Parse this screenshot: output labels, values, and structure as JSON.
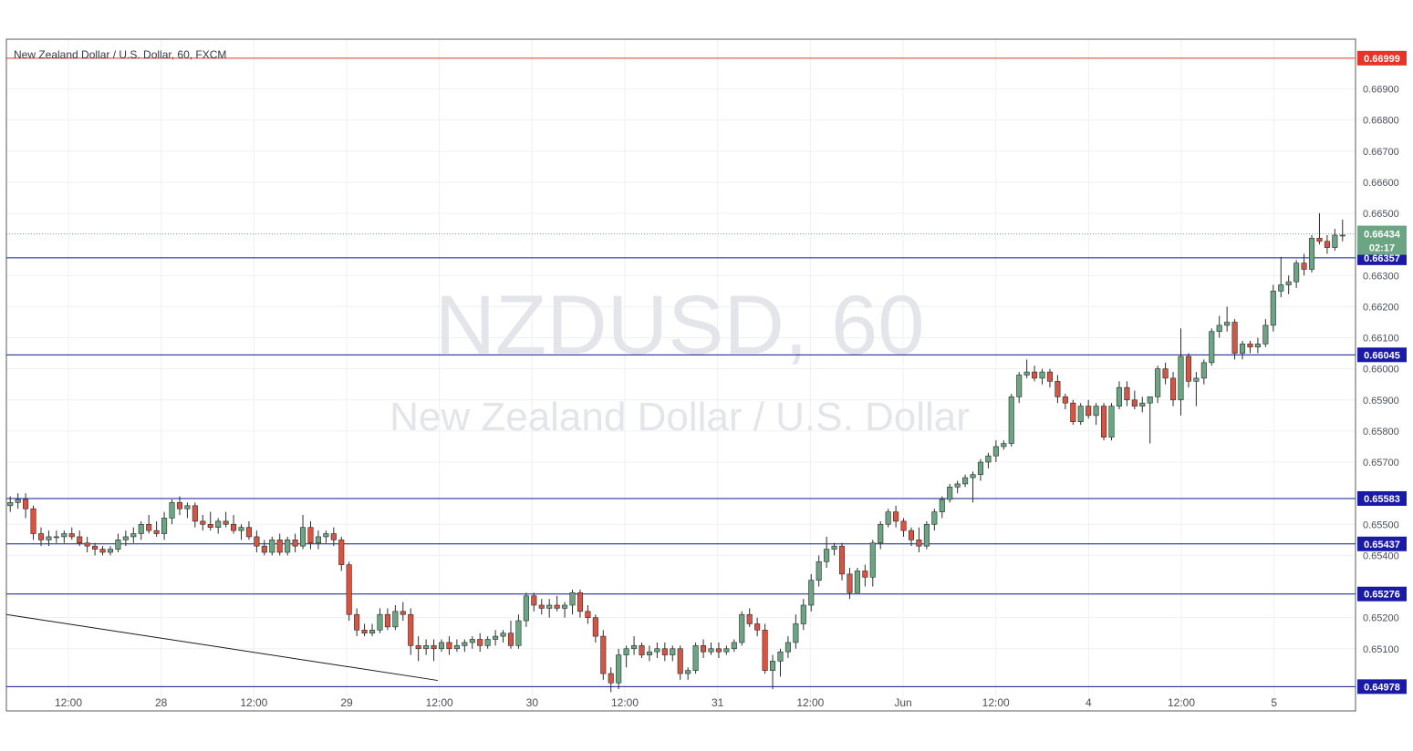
{
  "chart_title": "New Zealand Dollar / U.S. Dollar, 60, FXCM",
  "watermark": {
    "symbol": "NZDUSD, 60",
    "description": "New Zealand Dollar / U.S. Dollar"
  },
  "colors": {
    "bullish": "#6ba583",
    "bearish": "#d75442",
    "grid": "#eef0f3",
    "level_line": "#0c1a8a",
    "level_tag": "#1a1aa6",
    "top_line": "#e8332a",
    "current_price": "#6ba583"
  },
  "chart_data": {
    "type": "candlestick",
    "title": "New Zealand Dollar / U.S. Dollar, 60, FXCM",
    "interval": "60",
    "ylim": [
      0.649,
      0.6706
    ],
    "y_ticks": [
      "0.66900",
      "0.66800",
      "0.66700",
      "0.66600",
      "0.66500",
      "0.66300",
      "0.66200",
      "0.66100",
      "0.66000",
      "0.65900",
      "0.65800",
      "0.65700",
      "0.65500",
      "0.65400",
      "0.65200",
      "0.65100"
    ],
    "x_ticks": [
      "12:00",
      "28",
      "12:00",
      "29",
      "12:00",
      "30",
      "12:00",
      "31",
      "12:00",
      "Jun",
      "12:00",
      "4",
      "12:00",
      "5"
    ],
    "horizontal_levels": [
      {
        "label": "0.66999",
        "value": 0.66999,
        "style": "red"
      },
      {
        "label": "0.66357",
        "value": 0.66357,
        "style": "blue"
      },
      {
        "label": "0.66045",
        "value": 0.66045,
        "style": "blue"
      },
      {
        "label": "0.65583",
        "value": 0.65583,
        "style": "blue"
      },
      {
        "label": "0.65437",
        "value": 0.65437,
        "style": "blue"
      },
      {
        "label": "0.65276",
        "value": 0.65276,
        "style": "blue"
      },
      {
        "label": "0.64978",
        "value": 0.64978,
        "style": "blue"
      }
    ],
    "current_price": {
      "label": "0.66434",
      "value": 0.66434,
      "countdown": "02:17"
    },
    "trend_line": {
      "start": 0.6521,
      "end": 0.64998
    },
    "candles": [
      [
        0.6556,
        0.6559,
        0.6554,
        0.6557
      ],
      [
        0.6557,
        0.656,
        0.6555,
        0.6558
      ],
      [
        0.6558,
        0.656,
        0.6552,
        0.6555
      ],
      [
        0.6555,
        0.6556,
        0.6545,
        0.6547
      ],
      [
        0.6547,
        0.6549,
        0.6543,
        0.6545
      ],
      [
        0.6545,
        0.6548,
        0.6543,
        0.6546
      ],
      [
        0.6546,
        0.6548,
        0.6544,
        0.6546
      ],
      [
        0.6546,
        0.6548,
        0.6544,
        0.6547
      ],
      [
        0.6547,
        0.6549,
        0.6545,
        0.6546
      ],
      [
        0.6546,
        0.6548,
        0.6543,
        0.6544
      ],
      [
        0.6544,
        0.6546,
        0.6541,
        0.6543
      ],
      [
        0.6543,
        0.6544,
        0.654,
        0.6542
      ],
      [
        0.6542,
        0.6543,
        0.654,
        0.6541
      ],
      [
        0.6541,
        0.6543,
        0.654,
        0.6542
      ],
      [
        0.6542,
        0.6547,
        0.6541,
        0.6545
      ],
      [
        0.6545,
        0.6548,
        0.6543,
        0.6546
      ],
      [
        0.6546,
        0.6549,
        0.6544,
        0.6547
      ],
      [
        0.6547,
        0.6551,
        0.6545,
        0.655
      ],
      [
        0.655,
        0.6553,
        0.6547,
        0.6548
      ],
      [
        0.6548,
        0.6551,
        0.6546,
        0.6547
      ],
      [
        0.6547,
        0.6554,
        0.6545,
        0.6552
      ],
      [
        0.6552,
        0.6558,
        0.655,
        0.6557
      ],
      [
        0.6557,
        0.6559,
        0.6553,
        0.6555
      ],
      [
        0.6555,
        0.6557,
        0.6552,
        0.6556
      ],
      [
        0.6556,
        0.6557,
        0.6549,
        0.6551
      ],
      [
        0.6551,
        0.6553,
        0.6548,
        0.655
      ],
      [
        0.655,
        0.6554,
        0.6548,
        0.6549
      ],
      [
        0.6549,
        0.6552,
        0.6547,
        0.6551
      ],
      [
        0.6551,
        0.6554,
        0.6549,
        0.655
      ],
      [
        0.655,
        0.6553,
        0.6547,
        0.6548
      ],
      [
        0.6548,
        0.655,
        0.6545,
        0.6549
      ],
      [
        0.6549,
        0.6551,
        0.6545,
        0.6546
      ],
      [
        0.6546,
        0.6548,
        0.6541,
        0.6543
      ],
      [
        0.6543,
        0.6545,
        0.654,
        0.6541
      ],
      [
        0.6541,
        0.6546,
        0.654,
        0.6545
      ],
      [
        0.6545,
        0.6547,
        0.654,
        0.6541
      ],
      [
        0.6541,
        0.6546,
        0.654,
        0.6545
      ],
      [
        0.6545,
        0.6547,
        0.6541,
        0.6543
      ],
      [
        0.6543,
        0.6553,
        0.6542,
        0.6549
      ],
      [
        0.6549,
        0.6551,
        0.6542,
        0.6544
      ],
      [
        0.6544,
        0.6548,
        0.6542,
        0.6546
      ],
      [
        0.6546,
        0.6548,
        0.6544,
        0.6547
      ],
      [
        0.6547,
        0.6549,
        0.6543,
        0.6545
      ],
      [
        0.6545,
        0.6546,
        0.6535,
        0.6537
      ],
      [
        0.6537,
        0.6538,
        0.6519,
        0.6521
      ],
      [
        0.6521,
        0.6523,
        0.6514,
        0.6516
      ],
      [
        0.6516,
        0.6518,
        0.6514,
        0.6515
      ],
      [
        0.6515,
        0.6518,
        0.6514,
        0.6516
      ],
      [
        0.6516,
        0.6523,
        0.6515,
        0.6521
      ],
      [
        0.6521,
        0.6523,
        0.6516,
        0.6517
      ],
      [
        0.6517,
        0.6524,
        0.6516,
        0.6522
      ],
      [
        0.6522,
        0.6525,
        0.6519,
        0.6521
      ],
      [
        0.6521,
        0.6523,
        0.6508,
        0.6511
      ],
      [
        0.6511,
        0.6514,
        0.6506,
        0.651
      ],
      [
        0.651,
        0.6513,
        0.6508,
        0.6511
      ],
      [
        0.6511,
        0.6513,
        0.6506,
        0.651
      ],
      [
        0.651,
        0.6513,
        0.6509,
        0.6512
      ],
      [
        0.6512,
        0.6514,
        0.6508,
        0.651
      ],
      [
        0.651,
        0.6513,
        0.6509,
        0.6511
      ],
      [
        0.6511,
        0.6513,
        0.6509,
        0.6512
      ],
      [
        0.6512,
        0.6514,
        0.651,
        0.6513
      ],
      [
        0.6513,
        0.6515,
        0.6509,
        0.6511
      ],
      [
        0.6511,
        0.6514,
        0.651,
        0.6513
      ],
      [
        0.6513,
        0.6516,
        0.6511,
        0.6514
      ],
      [
        0.6514,
        0.6516,
        0.6512,
        0.6515
      ],
      [
        0.6515,
        0.6519,
        0.651,
        0.6511
      ],
      [
        0.6511,
        0.6521,
        0.651,
        0.6519
      ],
      [
        0.6519,
        0.6528,
        0.6517,
        0.6527
      ],
      [
        0.6527,
        0.6528,
        0.6522,
        0.6524
      ],
      [
        0.6524,
        0.6526,
        0.6521,
        0.6523
      ],
      [
        0.6523,
        0.6526,
        0.652,
        0.6524
      ],
      [
        0.6524,
        0.6527,
        0.6522,
        0.6523
      ],
      [
        0.6523,
        0.6525,
        0.652,
        0.6524
      ],
      [
        0.6524,
        0.6529,
        0.6521,
        0.6528
      ],
      [
        0.6528,
        0.6529,
        0.652,
        0.6522
      ],
      [
        0.6522,
        0.6524,
        0.6518,
        0.652
      ],
      [
        0.652,
        0.6521,
        0.6512,
        0.6514
      ],
      [
        0.6514,
        0.6516,
        0.65,
        0.6502
      ],
      [
        0.6502,
        0.6504,
        0.6496,
        0.6499
      ],
      [
        0.6499,
        0.651,
        0.6497,
        0.6508
      ],
      [
        0.6508,
        0.6511,
        0.6504,
        0.651
      ],
      [
        0.651,
        0.6514,
        0.6508,
        0.6511
      ],
      [
        0.6511,
        0.6512,
        0.6507,
        0.6508
      ],
      [
        0.6508,
        0.6511,
        0.6506,
        0.6509
      ],
      [
        0.6509,
        0.6512,
        0.6507,
        0.651
      ],
      [
        0.651,
        0.6512,
        0.6506,
        0.6508
      ],
      [
        0.6508,
        0.6511,
        0.6506,
        0.651
      ],
      [
        0.651,
        0.6511,
        0.65,
        0.6502
      ],
      [
        0.6502,
        0.6504,
        0.65,
        0.6503
      ],
      [
        0.6503,
        0.6512,
        0.6502,
        0.6511
      ],
      [
        0.6511,
        0.6513,
        0.6507,
        0.6509
      ],
      [
        0.6509,
        0.6512,
        0.6508,
        0.651
      ],
      [
        0.651,
        0.6512,
        0.6507,
        0.6509
      ],
      [
        0.6509,
        0.6511,
        0.6508,
        0.651
      ],
      [
        0.651,
        0.6513,
        0.6509,
        0.6512
      ],
      [
        0.6512,
        0.6522,
        0.6511,
        0.6521
      ],
      [
        0.6521,
        0.6523,
        0.6517,
        0.6518
      ],
      [
        0.6518,
        0.652,
        0.6514,
        0.6516
      ],
      [
        0.6516,
        0.6518,
        0.6502,
        0.6503
      ],
      [
        0.6503,
        0.6508,
        0.6497,
        0.6506
      ],
      [
        0.6506,
        0.651,
        0.6501,
        0.6509
      ],
      [
        0.6509,
        0.6514,
        0.6507,
        0.6512
      ],
      [
        0.6512,
        0.6521,
        0.651,
        0.6518
      ],
      [
        0.6518,
        0.6526,
        0.6516,
        0.6524
      ],
      [
        0.6524,
        0.6534,
        0.6522,
        0.6532
      ],
      [
        0.6532,
        0.654,
        0.653,
        0.6538
      ],
      [
        0.6538,
        0.6546,
        0.6536,
        0.6542
      ],
      [
        0.6542,
        0.6544,
        0.654,
        0.6543
      ],
      [
        0.6543,
        0.6544,
        0.6532,
        0.6534
      ],
      [
        0.6534,
        0.6536,
        0.6526,
        0.6528
      ],
      [
        0.6528,
        0.6536,
        0.6528,
        0.6535
      ],
      [
        0.6535,
        0.6537,
        0.653,
        0.6533
      ],
      [
        0.6533,
        0.6545,
        0.653,
        0.6544
      ],
      [
        0.6544,
        0.6551,
        0.6542,
        0.655
      ],
      [
        0.655,
        0.6555,
        0.6549,
        0.6554
      ],
      [
        0.6554,
        0.6556,
        0.6549,
        0.6551
      ],
      [
        0.6551,
        0.6552,
        0.6546,
        0.6548
      ],
      [
        0.6548,
        0.6549,
        0.6543,
        0.6545
      ],
      [
        0.6545,
        0.6549,
        0.6541,
        0.6543
      ],
      [
        0.6543,
        0.6551,
        0.6542,
        0.655
      ],
      [
        0.655,
        0.6555,
        0.6548,
        0.6554
      ],
      [
        0.6554,
        0.6559,
        0.6552,
        0.6558
      ],
      [
        0.6558,
        0.6563,
        0.6557,
        0.6562
      ],
      [
        0.6562,
        0.6564,
        0.656,
        0.6563
      ],
      [
        0.6563,
        0.6566,
        0.6562,
        0.6565
      ],
      [
        0.6565,
        0.6567,
        0.6557,
        0.6566
      ],
      [
        0.6566,
        0.6571,
        0.6564,
        0.657
      ],
      [
        0.657,
        0.6573,
        0.6568,
        0.6572
      ],
      [
        0.6572,
        0.6577,
        0.657,
        0.6575
      ],
      [
        0.6575,
        0.6577,
        0.6574,
        0.6576
      ],
      [
        0.6576,
        0.6592,
        0.6575,
        0.6591
      ],
      [
        0.6591,
        0.6599,
        0.6589,
        0.6598
      ],
      [
        0.6598,
        0.6603,
        0.6597,
        0.6599
      ],
      [
        0.6599,
        0.6601,
        0.6596,
        0.6597
      ],
      [
        0.6597,
        0.66,
        0.6595,
        0.6599
      ],
      [
        0.6599,
        0.66,
        0.6594,
        0.6596
      ],
      [
        0.6596,
        0.6598,
        0.6589,
        0.6591
      ],
      [
        0.6591,
        0.6592,
        0.6587,
        0.6589
      ],
      [
        0.6589,
        0.659,
        0.6582,
        0.6583
      ],
      [
        0.6583,
        0.6589,
        0.6582,
        0.6588
      ],
      [
        0.6588,
        0.659,
        0.6584,
        0.6585
      ],
      [
        0.6585,
        0.6589,
        0.6582,
        0.6588
      ],
      [
        0.6588,
        0.6589,
        0.6577,
        0.6578
      ],
      [
        0.6578,
        0.6589,
        0.6577,
        0.6588
      ],
      [
        0.6588,
        0.6596,
        0.6587,
        0.6594
      ],
      [
        0.6594,
        0.6596,
        0.6588,
        0.659
      ],
      [
        0.659,
        0.6593,
        0.6587,
        0.6588
      ],
      [
        0.6588,
        0.6591,
        0.6586,
        0.6589
      ],
      [
        0.6589,
        0.6591,
        0.6576,
        0.6591
      ],
      [
        0.6591,
        0.6601,
        0.6589,
        0.66
      ],
      [
        0.66,
        0.6602,
        0.6595,
        0.6597
      ],
      [
        0.6597,
        0.6599,
        0.6588,
        0.659
      ],
      [
        0.659,
        0.6613,
        0.6585,
        0.6604
      ],
      [
        0.6604,
        0.6605,
        0.6594,
        0.6596
      ],
      [
        0.6596,
        0.6599,
        0.6588,
        0.6597
      ],
      [
        0.6597,
        0.6603,
        0.6595,
        0.6602
      ],
      [
        0.6602,
        0.6613,
        0.6601,
        0.6612
      ],
      [
        0.6612,
        0.6617,
        0.661,
        0.6614
      ],
      [
        0.6614,
        0.662,
        0.6612,
        0.6615
      ],
      [
        0.6615,
        0.6616,
        0.6603,
        0.6605
      ],
      [
        0.6605,
        0.6609,
        0.6603,
        0.6608
      ],
      [
        0.6608,
        0.6609,
        0.6605,
        0.6607
      ],
      [
        0.6607,
        0.661,
        0.6605,
        0.6608
      ],
      [
        0.6608,
        0.6616,
        0.6607,
        0.6614
      ],
      [
        0.6614,
        0.6627,
        0.6612,
        0.6625
      ],
      [
        0.6625,
        0.6636,
        0.6623,
        0.6627
      ],
      [
        0.6627,
        0.663,
        0.6624,
        0.6628
      ],
      [
        0.6628,
        0.6635,
        0.6626,
        0.6634
      ],
      [
        0.6634,
        0.6637,
        0.663,
        0.6632
      ],
      [
        0.6632,
        0.6643,
        0.6631,
        0.6642
      ],
      [
        0.6642,
        0.665,
        0.664,
        0.6641
      ],
      [
        0.6641,
        0.6643,
        0.6637,
        0.6639
      ],
      [
        0.6639,
        0.6645,
        0.6638,
        0.6643
      ],
      [
        0.6643,
        0.6648,
        0.6641,
        0.6643
      ]
    ]
  }
}
